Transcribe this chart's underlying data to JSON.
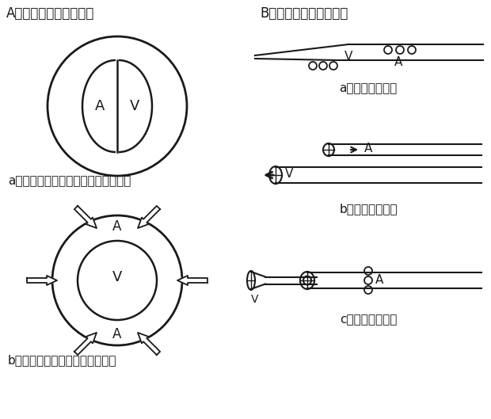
{
  "bg_color": "#ffffff",
  "line_color": "#1a1a1a",
  "section_A_title": "A．断面構造による分類",
  "section_B_title": "B．先端形状による分類",
  "label_a1": "a．隔壁二層型（ダブルアクシャル）",
  "label_b1": "b．同軸二層型（コアクシャル）",
  "label_a2": "a．サイドホール",
  "label_b2": "b．エンドホール",
  "label_c2": "c．コアクシャル"
}
